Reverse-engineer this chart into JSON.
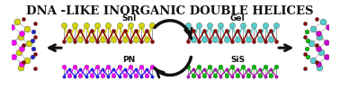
{
  "title": "DNA -LIKE INORGANIC DOUBLE HELICES",
  "title_fontsize": 9.5,
  "title_fontweight": "bold",
  "title_color": "#111111",
  "bg_color": "#ffffff",
  "label_sni": "SnI",
  "label_pn": "PN",
  "label_gei": "GeI",
  "label_sis": "SiS",
  "label_fontsize": 6.5,
  "label_color": "#111111",
  "helix_sni_upper_color": "#d4d400",
  "helix_sni_lower_color": "#8B0000",
  "helix_pn_upper_color": "#ff00ff",
  "helix_pn_lower_color": "#1a1aff",
  "helix_gei_upper_color": "#55cccc",
  "helix_gei_lower_color": "#8B0000",
  "helix_sis_upper_color": "#00bb00",
  "helix_sis_lower_color": "#bb00bb",
  "arrow_color": "#111111",
  "figsize": [
    3.78,
    1.1
  ],
  "dpi": 100
}
